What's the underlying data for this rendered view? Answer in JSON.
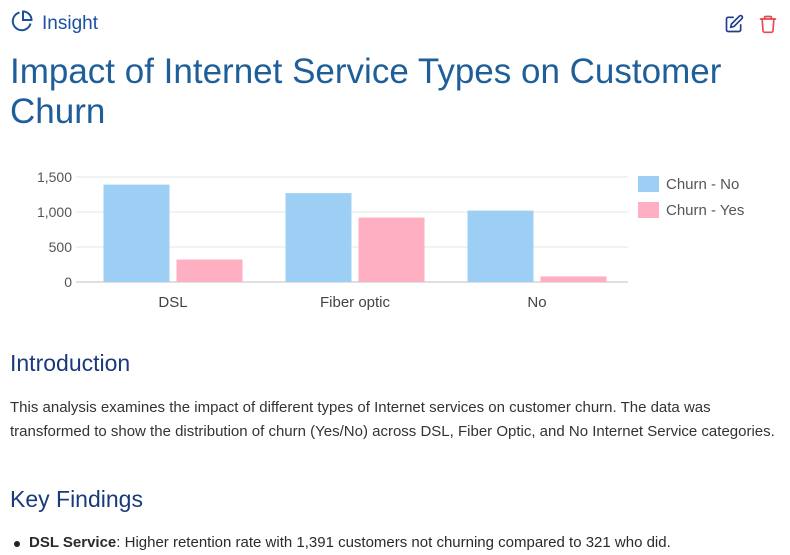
{
  "header": {
    "brand": "Insight",
    "brand_icon": "pie-chart-icon",
    "edit_icon": "edit-icon",
    "delete_icon": "trash-icon"
  },
  "title": "Impact of Internet Service Types on Customer Churn",
  "chart_data": {
    "type": "bar",
    "categories": [
      "DSL",
      "Fiber optic",
      "No"
    ],
    "series": [
      {
        "name": "Churn - No",
        "color": "#9ccff3",
        "values": [
          1391,
          1270,
          1020
        ]
      },
      {
        "name": "Churn - Yes",
        "color": "#ffafc2",
        "values": [
          321,
          920,
          80
        ]
      }
    ],
    "ylim": [
      0,
      1500
    ],
    "yticks": [
      "0",
      "500",
      "1,000",
      "1,500"
    ],
    "grid": true,
    "legend": "right"
  },
  "intro": {
    "heading": "Introduction",
    "text": "This analysis examines the impact of different types of Internet services on customer churn. The data was transformed to show the distribution of churn (Yes/No) across DSL, Fiber Optic, and No Internet Service categories."
  },
  "key_findings": {
    "heading": "Key Findings",
    "items": [
      {
        "label": "DSL Service",
        "text": ": Higher retention rate with 1,391 customers not churning compared to 321 who did."
      }
    ]
  }
}
